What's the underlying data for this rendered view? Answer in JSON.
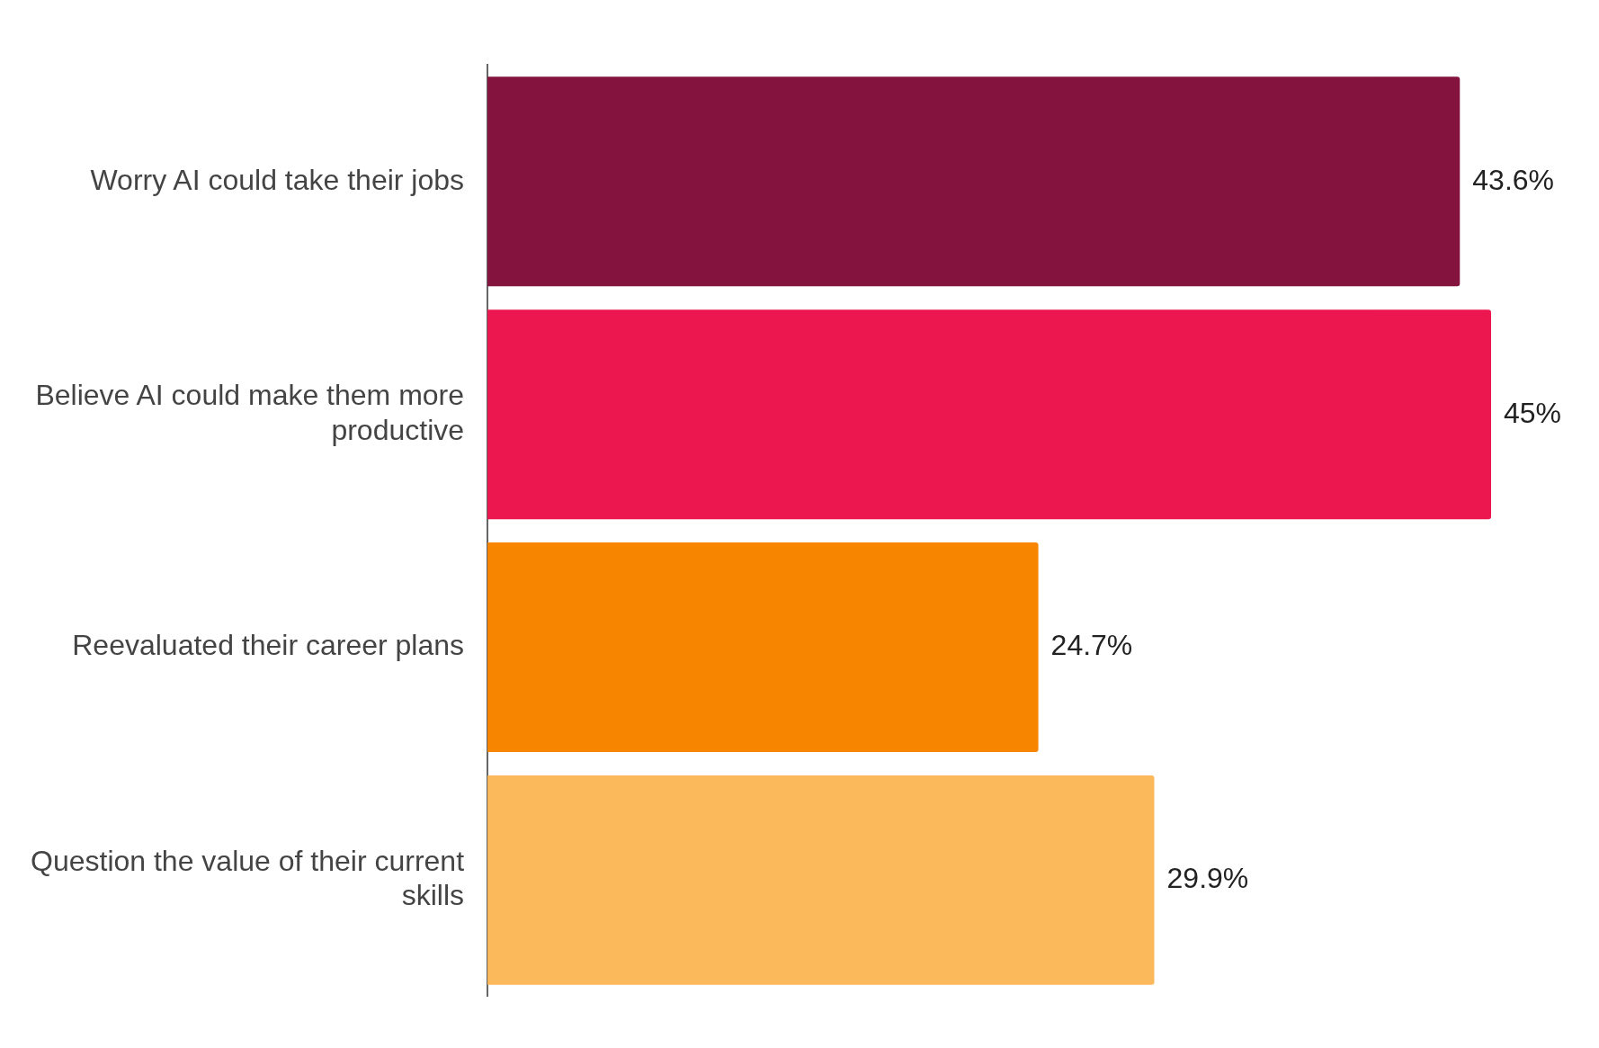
{
  "chart_data": {
    "type": "bar",
    "orientation": "horizontal",
    "categories": [
      "Worry AI could take their jobs",
      "Believe AI could make them more productive",
      "Reevaluated their career plans",
      "Question the value of their current skills"
    ],
    "values": [
      43.6,
      45,
      24.7,
      29.9
    ],
    "colors": [
      "#84133d",
      "#ec174f",
      "#f78500",
      "#fcb95b"
    ],
    "value_labels": [
      "43.6%",
      "45%",
      "24.7%",
      "29.9%"
    ],
    "xlim": [
      0,
      45
    ],
    "tick_labels": "y",
    "grid": false,
    "legend": false
  }
}
